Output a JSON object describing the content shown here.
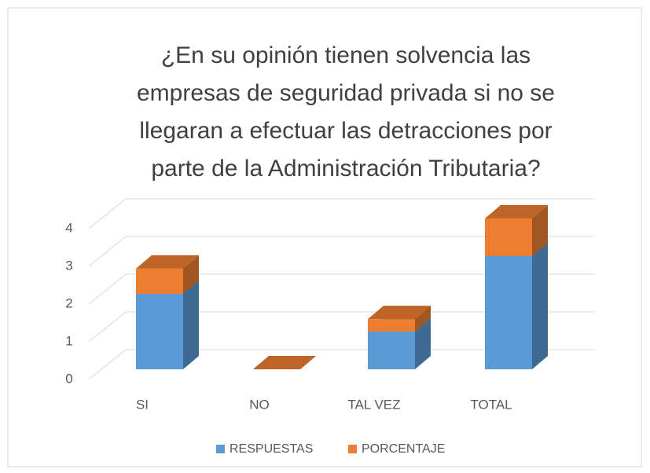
{
  "chart_data": {
    "type": "bar3d_stacked",
    "title": [
      "¿En su opinión tienen solvencia las",
      "empresas de seguridad privada si no se",
      "llegaran a efectuar las detracciones por",
      "parte de la Administración Tributaria?"
    ],
    "categories": [
      "SI",
      "NO",
      "TAL VEZ",
      "TOTAL"
    ],
    "series": [
      {
        "name": "RESPUESTAS",
        "color": "#5b9bd5",
        "values": [
          2,
          0,
          1,
          3
        ]
      },
      {
        "name": "PORCENTAJE",
        "color": "#ed7d31",
        "values": [
          0.67,
          0,
          0.33,
          1
        ]
      }
    ],
    "ylim": [
      0,
      4
    ],
    "yticks": [
      0,
      1,
      2,
      3,
      4
    ],
    "grid": true,
    "legend": "bottom"
  }
}
